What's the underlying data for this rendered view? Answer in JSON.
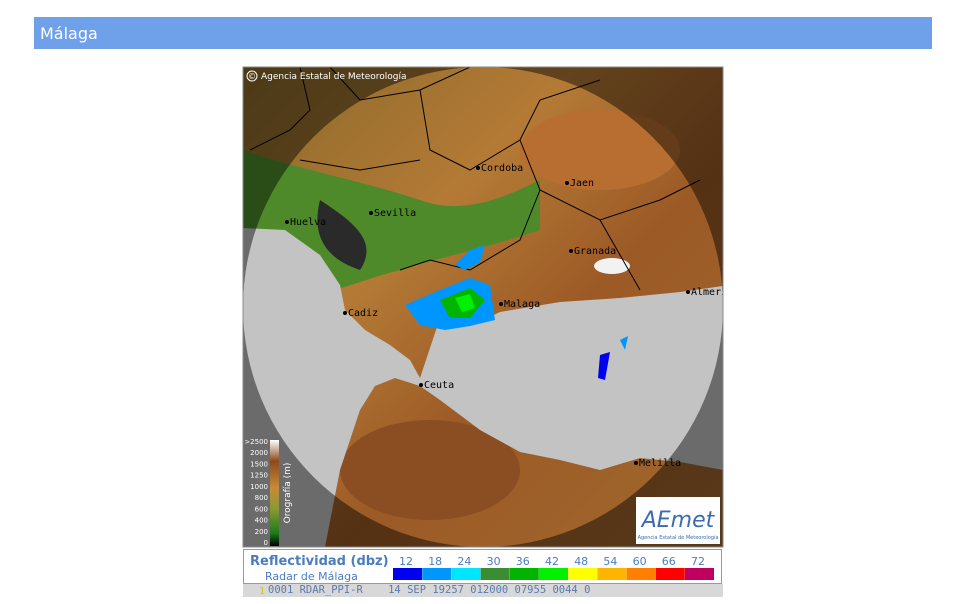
{
  "header": {
    "title": "Málaga"
  },
  "map": {
    "copyright_symbol": "©",
    "copyright": "Agencia Estatal de Meteorología",
    "cities": [
      "Cordoba",
      "Jaen",
      "Sevilla",
      "Huelva",
      "Granada",
      "Malaga",
      "Cadiz",
      "Ceuta",
      "Melilla",
      "Almeria"
    ],
    "orography": {
      "title": "Orografía (m)",
      "ticks": [
        ">2500",
        "2000",
        "1500",
        "1250",
        "1000",
        "800",
        "600",
        "400",
        "200",
        "0"
      ]
    },
    "logo": {
      "name": "AEmet",
      "subtitle": "Agencia Estatal de Meteorología"
    }
  },
  "legend": {
    "title": "Reflectividad (dbz)",
    "subtitle": "Radar de Málaga",
    "levels": [
      12,
      18,
      24,
      30,
      36,
      42,
      48,
      54,
      60,
      66,
      72
    ],
    "colors": [
      "#0000f0",
      "#0096ff",
      "#00e6ff",
      "#3c8c32",
      "#00b400",
      "#00f000",
      "#ffff00",
      "#ffb400",
      "#ff8000",
      "#ff0000",
      "#c00060"
    ]
  },
  "footer": {
    "marker": "1",
    "text": "0001 RDAR_PPI-R    14 SEP 19257 012000 07955 0044 0"
  }
}
